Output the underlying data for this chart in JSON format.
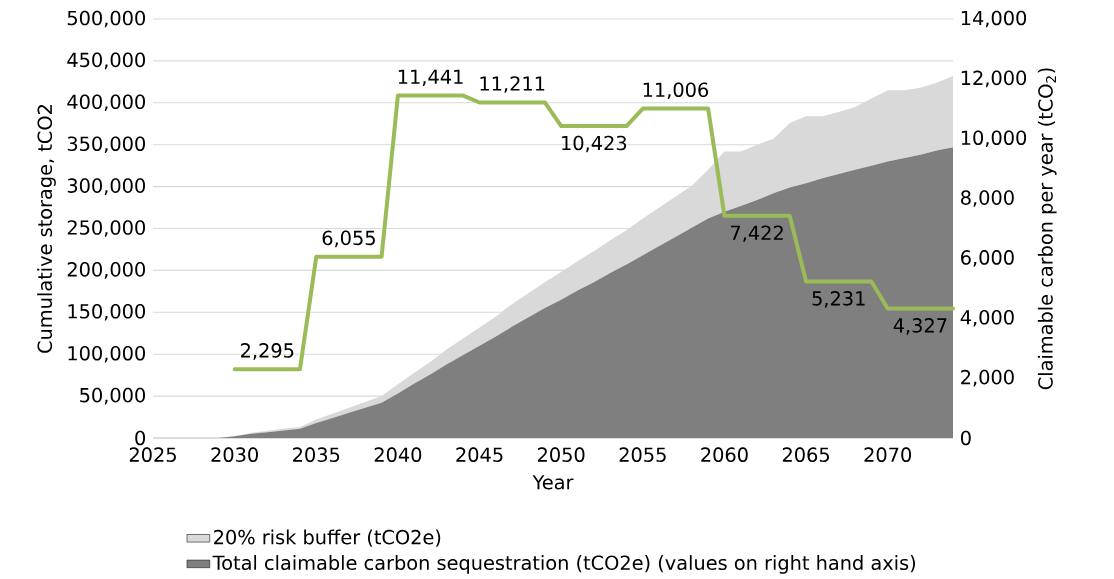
{
  "chart_data": {
    "type": "area",
    "stacked": true,
    "xlabel": "Year",
    "ylabel": "Cumulative storage, tCO2",
    "y2label": "Claimable carbon per year (tCO$_{2}$)",
    "x": [
      2025,
      2026,
      2027,
      2028,
      2029,
      2030,
      2031,
      2032,
      2033,
      2034,
      2035,
      2036,
      2037,
      2038,
      2039,
      2040,
      2041,
      2042,
      2043,
      2044,
      2045,
      2046,
      2047,
      2048,
      2049,
      2050,
      2051,
      2052,
      2053,
      2054,
      2055,
      2056,
      2057,
      2058,
      2059,
      2060,
      2061,
      2062,
      2063,
      2064,
      2065,
      2066,
      2067,
      2068,
      2069,
      2070,
      2071,
      2072,
      2073,
      2074
    ],
    "xlim": [
      2025,
      2074
    ],
    "xticks": [
      2025,
      2030,
      2035,
      2040,
      2045,
      2050,
      2055,
      2060,
      2065,
      2070
    ],
    "ylim": [
      0,
      500000
    ],
    "yticks": [
      {
        "value": 0,
        "label": "0"
      },
      {
        "value": 50000,
        "label": "50,000"
      },
      {
        "value": 100000,
        "label": "100,000"
      },
      {
        "value": 150000,
        "label": "150,000"
      },
      {
        "value": 200000,
        "label": "200,000"
      },
      {
        "value": 250000,
        "label": "250,000"
      },
      {
        "value": 300000,
        "label": "300,000"
      },
      {
        "value": 350000,
        "label": "350,000"
      },
      {
        "value": 400000,
        "label": "400,000"
      },
      {
        "value": 450000,
        "label": "450,000"
      },
      {
        "value": 500000,
        "label": "500,000"
      }
    ],
    "y2lim": [
      0,
      14000
    ],
    "y2ticks": [
      {
        "value": 0,
        "label": "0"
      },
      {
        "value": 2000,
        "label": "2,000"
      },
      {
        "value": 4000,
        "label": "4,000"
      },
      {
        "value": 6000,
        "label": "6,000"
      },
      {
        "value": 8000,
        "label": "8,000"
      },
      {
        "value": 10000,
        "label": "10,000"
      },
      {
        "value": 12000,
        "label": "12,000"
      },
      {
        "value": 14000,
        "label": "14,000"
      }
    ],
    "grid": "y",
    "legend": "bottom",
    "series": [
      {
        "name": "Total claimable carbon sequestration (tCO2e)  (values on right hand axis)",
        "color": "#7f7f7f",
        "values": [
          0,
          0,
          0,
          0,
          0,
          2000,
          5000,
          7000,
          9000,
          11000,
          18000,
          24000,
          30000,
          36000,
          42000,
          53000,
          65000,
          76000,
          88000,
          99000,
          110000,
          121000,
          133000,
          144000,
          155000,
          165000,
          176000,
          186000,
          197000,
          207000,
          218000,
          229000,
          240000,
          251000,
          262000,
          270000,
          277000,
          284000,
          292000,
          299000,
          304000,
          310000,
          315000,
          320000,
          325000,
          330000,
          334000,
          338000,
          343000,
          347000
        ]
      },
      {
        "name": "20% risk buffer (tCO2e)",
        "color": "#d9d9d9",
        "values": [
          0,
          0,
          0,
          0,
          0,
          500,
          1000,
          1500,
          2000,
          2000,
          4000,
          5000,
          6000,
          7000,
          8000,
          11000,
          13000,
          15000,
          18000,
          20000,
          22000,
          24000,
          27000,
          29000,
          31000,
          33000,
          35000,
          37000,
          39000,
          41000,
          44000,
          46000,
          48000,
          50000,
          58000,
          72000,
          65000,
          66000,
          65000,
          77000,
          80000,
          74000,
          74000,
          75000,
          80000,
          85000,
          81000,
          80000,
          81000,
          85000
        ]
      },
      {
        "type": "line",
        "axis": "y2",
        "color": "#9bbb59",
        "values": [
          null,
          null,
          null,
          null,
          null,
          2295,
          2295,
          2295,
          2295,
          2295,
          6055,
          6055,
          6055,
          6055,
          6055,
          11441,
          11441,
          11441,
          11441,
          11441,
          11211,
          11211,
          11211,
          11211,
          11211,
          10423,
          10423,
          10423,
          10423,
          10423,
          11006,
          11006,
          11006,
          11006,
          11006,
          7422,
          7422,
          7422,
          7422,
          7422,
          5231,
          5231,
          5231,
          5231,
          5231,
          4327,
          4327,
          4327,
          4327,
          4327
        ],
        "value_labels": [
          null,
          null,
          null,
          null,
          null,
          null,
          null,
          "2,295",
          null,
          null,
          null,
          null,
          "6,055",
          null,
          null,
          null,
          null,
          "11,441",
          null,
          null,
          null,
          null,
          "11,211",
          null,
          null,
          null,
          null,
          "10,423",
          null,
          null,
          null,
          null,
          "11,006",
          null,
          null,
          null,
          null,
          "7,422",
          null,
          null,
          null,
          null,
          "5,231",
          null,
          null,
          null,
          null,
          "4,327",
          null,
          null
        ]
      }
    ]
  }
}
